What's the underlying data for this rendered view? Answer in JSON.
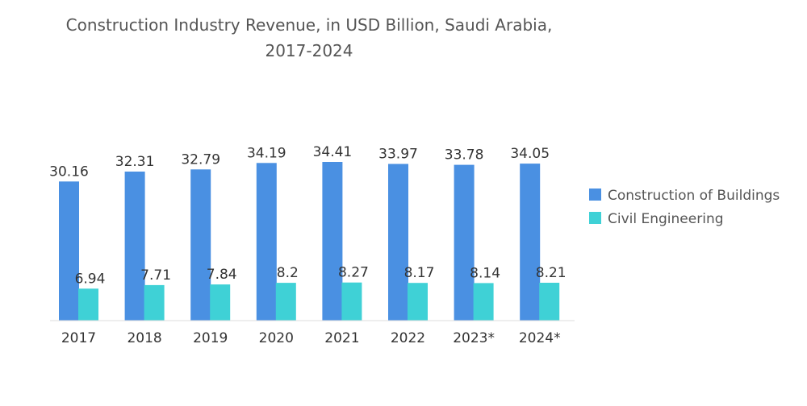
{
  "chart_data": {
    "type": "bar",
    "title_lines": [
      "Construction Industry Revenue, in USD Billion, Saudi Arabia,",
      "2017-2024"
    ],
    "categories": [
      "2017",
      "2018",
      "2019",
      "2020",
      "2021",
      "2022",
      "2023*",
      "2024*"
    ],
    "series": [
      {
        "name": "Construction of Buildings",
        "color": "#4a90e2",
        "values": [
          30.16,
          32.31,
          32.79,
          34.19,
          34.41,
          33.97,
          33.78,
          34.05
        ]
      },
      {
        "name": "Civil Engineering",
        "color": "#3fd1d6",
        "values": [
          6.94,
          7.71,
          7.84,
          8.2,
          8.27,
          8.17,
          8.14,
          8.21
        ]
      }
    ],
    "value_labels": [
      [
        "30.16",
        "32.31",
        "32.79",
        "34.19",
        "34.41",
        "33.97",
        "33.78",
        "34.05"
      ],
      [
        "6.94",
        "7.71",
        "7.84",
        "8.2",
        "8.27",
        "8.17",
        "8.14",
        "8.21"
      ]
    ],
    "xlabel": "",
    "ylabel": "",
    "ylim": [
      0,
      34.41
    ],
    "grid": false,
    "legend_position": "right"
  }
}
